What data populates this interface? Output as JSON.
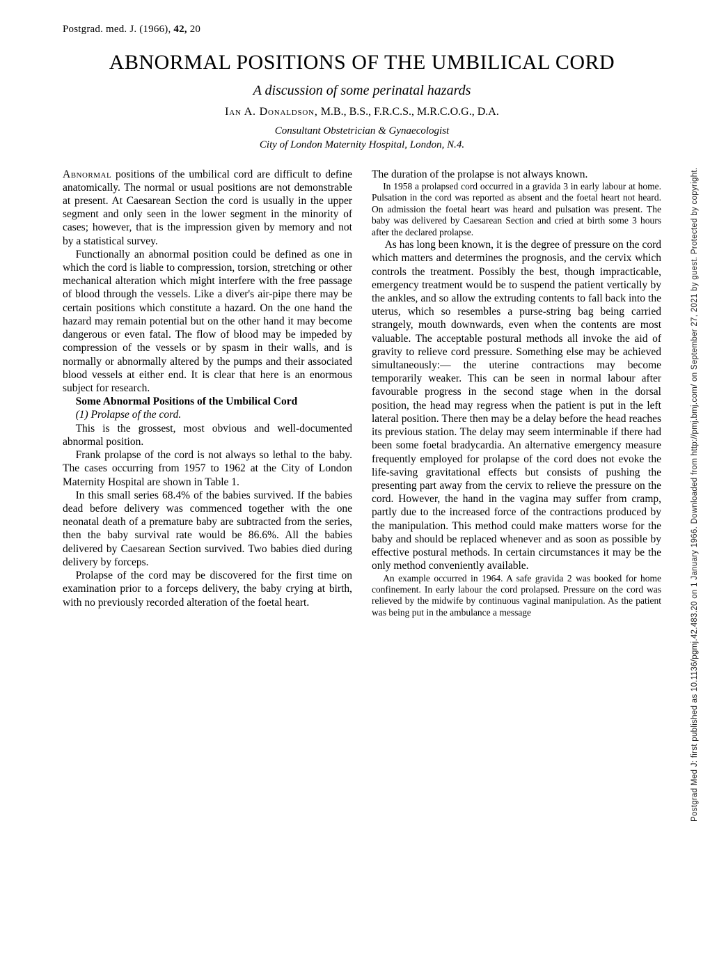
{
  "runningHead": {
    "journal": "Postgrad. med. J.",
    "year": "(1966),",
    "vol": "42,",
    "page": "20"
  },
  "title": "ABNORMAL POSITIONS OF THE UMBILICAL CORD",
  "subtitle": "A discussion of some perinatal hazards",
  "author": {
    "name_sc": "Ian A. Donaldson,",
    "degrees": " M.B., B.S., F.R.C.S., M.R.C.O.G., D.A."
  },
  "affil": {
    "l1": "Consultant Obstetrician & Gynaecologist",
    "l2": "City of London Maternity Hospital, London, N.4."
  },
  "left": {
    "p1_lead": "Abnormal",
    "p1_rest": " positions of the umbilical cord are difficult to define anatomically. The normal or usual positions are not demonstrable at present. At Caesarean Section the cord is usually in the upper segment and only seen in the lower segment in the minority of cases; however, that is the impression given by memory and not by a statistical survey.",
    "p2": "Functionally an abnormal position could be defined as one in which the cord is liable to compression, torsion, stretching or other mechanical alteration which might interfere with the free passage of blood through the vessels. Like a diver's air-pipe there may be certain positions which constitute a hazard. On the one hand the hazard may remain potential but on the other hand it may become dangerous or even fatal. The flow of blood may be impeded by compression of the vessels or by spasm in their walls, and is normally or abnormally altered by the pumps and their associated blood vessels at either end. It is clear that here is an enormous subject for research.",
    "sec_head": "Some Abnormal Positions of the Umbilical Cord",
    "item1": "(1)  Prolapse of the cord.",
    "p3": "This is the grossest, most obvious and well-documented abnormal position.",
    "p4": "Frank prolapse of the cord is not always so lethal to the baby. The cases occurring from 1957 to 1962 at the City of London Maternity Hospital are shown in Table 1.",
    "p5": "In this small series 68.4% of the babies survived. If the babies dead before delivery was commenced together with the one neonatal death of a premature baby are subtracted from the series, then the baby survival rate would be 86.6%. All the babies delivered by Caesarean Section survived. Two babies died during delivery by forceps.",
    "p6": "Prolapse of the cord may be discovered for the first time on examination prior to a forceps delivery, the baby crying at birth, with no previously recorded alteration of the foetal heart."
  },
  "right": {
    "p1": "The duration of the prolapse is not always known.",
    "petit1": "In 1958 a prolapsed cord occurred in a gravida 3 in early labour at home. Pulsation in the cord was reported as absent and the foetal heart not heard. On admission the foetal heart was heard and pulsation was present. The baby was delivered by Caesarean Section and cried at birth some 3 hours after the declared prolapse.",
    "p2": "As has long been known, it is the degree of pressure on the cord which matters and determines the prognosis, and the cervix which controls the treatment. Possibly the best, though impracticable, emergency treatment would be to suspend the patient vertically by the ankles, and so allow the extruding contents to fall back into the uterus, which so resembles a purse-string bag being carried strangely, mouth downwards, even when the contents are most valuable. The acceptable postural methods all invoke the aid of gravity to relieve cord pressure. Something else may be achieved simultaneously:— the uterine contractions may become temporarily weaker. This can be seen in normal labour after favourable progress in the second stage when in the dorsal position, the head may regress when the patient is put in the left lateral position. There then may be a delay before the head reaches its previous station. The delay may seem interminable if there had been some foetal bradycardia. An alternative emergency measure frequently employed for prolapse of the cord does not evoke the life-saving gravitational effects but consists of pushing the presenting part away from the cervix to relieve the pressure on the cord. However, the hand in the vagina may suffer from cramp, partly due to the increased force of the contractions produced by the manipulation. This method could make matters worse for the baby and should be replaced whenever and as soon as possible by effective postural methods. In certain circumstances it may be the only method conveniently available.",
    "petit2": "An example occurred in 1964. A safe gravida 2 was booked for home confinement. In early labour the cord prolapsed. Pressure on the cord was relieved by the midwife by continuous vaginal manipulation. As the patient was being put in the ambulance a message"
  },
  "sideNote": "Postgrad Med J: first published as 10.1136/pgmj.42.483.20 on 1 January 1966. Downloaded from http://pmj.bmj.com/ on September 27, 2021 by guest. Protected by copyright."
}
